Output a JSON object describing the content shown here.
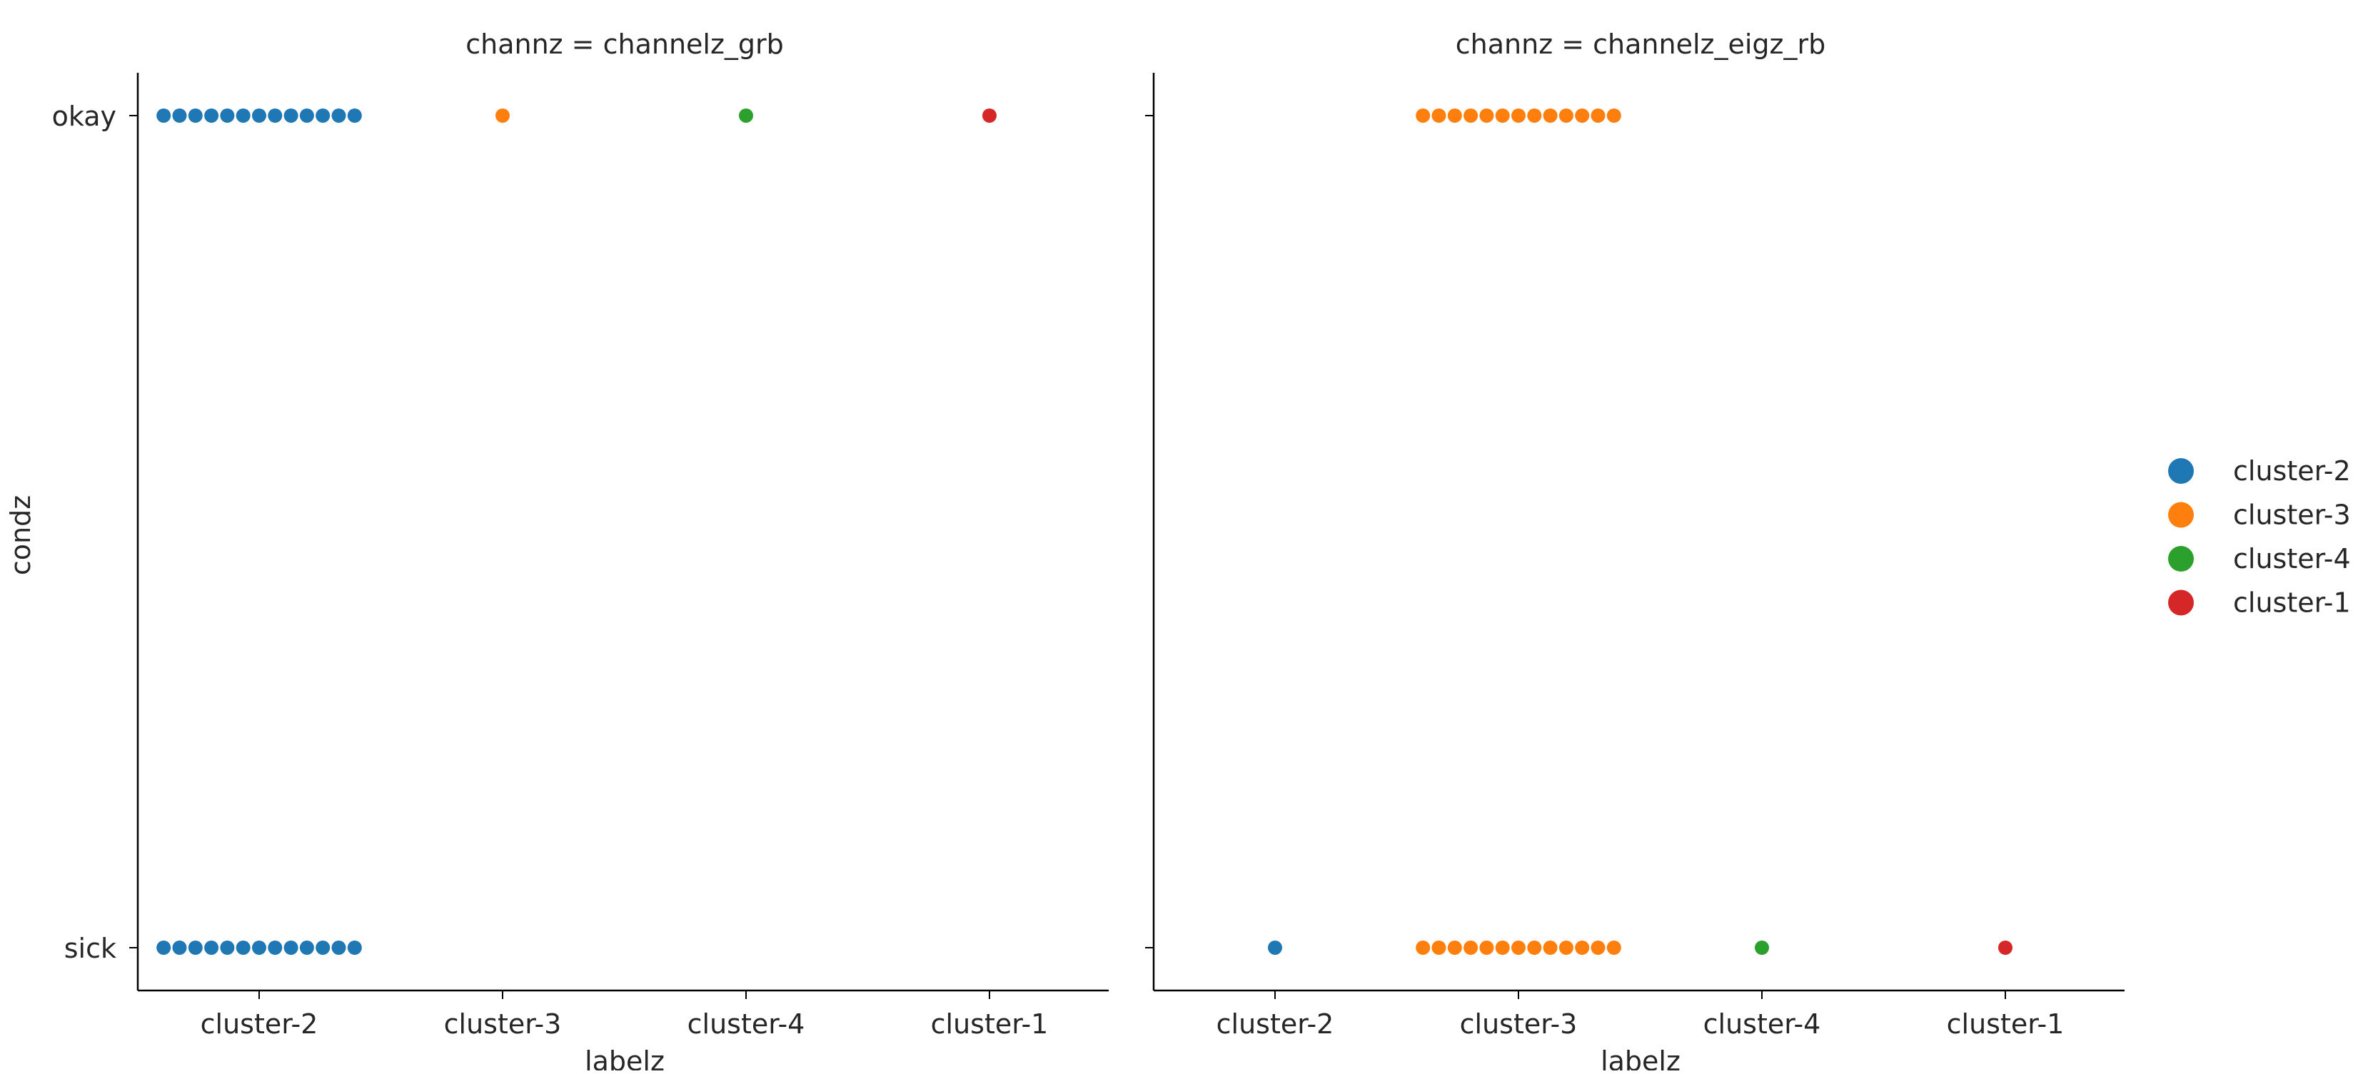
{
  "chart_data": {
    "type": "scatter",
    "subtype": "categorical strip plot (faceted)",
    "legend": {
      "placement": "right",
      "entries": [
        {
          "label": "cluster-2",
          "color": "#1f77b4"
        },
        {
          "label": "cluster-3",
          "color": "#ff7f0e"
        },
        {
          "label": "cluster-4",
          "color": "#2ca02c"
        },
        {
          "label": "cluster-1",
          "color": "#d62728"
        }
      ]
    },
    "ylabel": "condz",
    "y_categories": [
      "okay",
      "sick"
    ],
    "grid": false,
    "panels": [
      {
        "title": "channz = channelz_grb",
        "xlabel": "labelz",
        "x_categories": [
          "cluster-2",
          "cluster-3",
          "cluster-4",
          "cluster-1"
        ],
        "counts": [
          {
            "x": "cluster-2",
            "y": "okay",
            "n": 13
          },
          {
            "x": "cluster-3",
            "y": "okay",
            "n": 1
          },
          {
            "x": "cluster-4",
            "y": "okay",
            "n": 1
          },
          {
            "x": "cluster-1",
            "y": "okay",
            "n": 1
          },
          {
            "x": "cluster-2",
            "y": "sick",
            "n": 13
          }
        ]
      },
      {
        "title": "channz = channelz_eigz_rb",
        "xlabel": "labelz",
        "x_categories": [
          "cluster-2",
          "cluster-3",
          "cluster-4",
          "cluster-1"
        ],
        "counts": [
          {
            "x": "cluster-3",
            "y": "okay",
            "n": 13
          },
          {
            "x": "cluster-2",
            "y": "sick",
            "n": 1
          },
          {
            "x": "cluster-3",
            "y": "sick",
            "n": 13
          },
          {
            "x": "cluster-4",
            "y": "sick",
            "n": 1
          },
          {
            "x": "cluster-1",
            "y": "sick",
            "n": 1
          }
        ]
      }
    ]
  }
}
